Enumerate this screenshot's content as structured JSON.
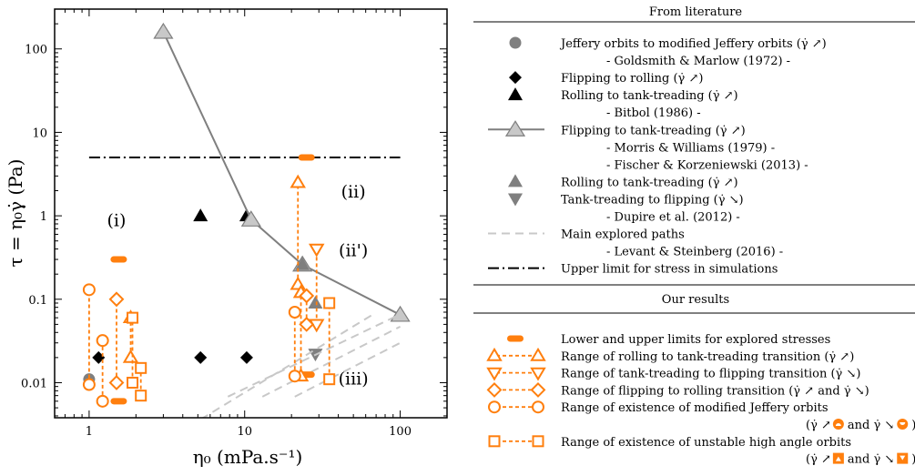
{
  "chart_data": {
    "type": "scatter",
    "xscale": "log",
    "yscale": "log",
    "xlim": [
      0.6,
      200
    ],
    "ylim": [
      0.0038,
      300
    ],
    "xticks": [
      1,
      10,
      100
    ],
    "xtick_labels": [
      "1",
      "10",
      "100"
    ],
    "yticks": [
      0.01,
      0.1,
      1,
      10,
      100
    ],
    "ytick_labels": [
      "0.01",
      "0.1",
      "1",
      "10",
      "100"
    ],
    "xlabel": "η₀ (mPa.s⁻¹)",
    "ylabel": "τ = η₀γ̇ (Pa)",
    "grid": false,
    "regions": [
      {
        "label": "(i)",
        "x": 1.5,
        "y": 0.75
      },
      {
        "label": "(ii)",
        "x": 50,
        "y": 1.65
      },
      {
        "label": "(ii')",
        "x": 50,
        "y": 0.33
      },
      {
        "label": "(iii)",
        "x": 50,
        "y": 0.0095
      }
    ],
    "colors": {
      "orange": "#ff7f0e",
      "gray": "#999999",
      "line_gray": "#7f7f7f",
      "light_gray": "#c8c8c8",
      "black": "#000000"
    },
    "series": [
      {
        "name": "Jeffery orbits to modified Jeffery orbits (γ̇ ↗)",
        "marker": "circle-filled-gray",
        "points": [
          [
            1.0,
            0.011
          ]
        ]
      },
      {
        "name": "Flipping to rolling (γ̇ ↗)",
        "marker": "diamond-black",
        "points": [
          [
            1.15,
            0.02
          ],
          [
            5.2,
            0.02
          ],
          [
            10.3,
            0.02
          ]
        ]
      },
      {
        "name": "Rolling to tank-treading (γ̇ ↗)",
        "marker": "triangle-up-black",
        "points": [
          [
            5.2,
            1.0
          ],
          [
            10.3,
            1.0
          ]
        ]
      },
      {
        "name": "Flipping to tank-treading (γ̇ ↗)",
        "marker": "triangle-up-lightgray-line",
        "points": [
          [
            3.0,
            160
          ],
          [
            11.0,
            0.9
          ],
          [
            23.5,
            0.26
          ],
          [
            100,
            0.065
          ]
        ]
      },
      {
        "name": "Rolling to tank-treading (γ̇ ↗)",
        "marker": "triangle-up-gray",
        "points": [
          [
            23.5,
            0.26
          ],
          [
            28.5,
            0.09
          ]
        ]
      },
      {
        "name": "Tank-treading to flipping (γ̇ ↘)",
        "marker": "triangle-down-gray",
        "points": [
          [
            28.5,
            0.022
          ]
        ]
      },
      {
        "name": "Main explored paths",
        "marker": "dashed-lightgray",
        "lines": [
          [
            [
              4.4,
              0.003
            ],
            [
              67,
              0.066
            ]
          ],
          [
            [
              7.8,
              0.0068
            ],
            [
              100,
              0.066
            ]
          ],
          [
            [
              13,
              0.0068
            ],
            [
              100,
              0.047
            ]
          ],
          [
            [
              21,
              0.0068
            ],
            [
              100,
              0.03
            ]
          ]
        ]
      },
      {
        "name": "Upper limit for stress in simulations",
        "marker": "dashdot-black",
        "lines": [
          [
            [
              1.0,
              5.0
            ],
            [
              100,
              5.0
            ]
          ]
        ],
        "value": 5.0
      },
      {
        "name": "Lower and upper limits for explored stresses",
        "marker": "orange-pill",
        "points": [
          [
            1.55,
            0.3
          ],
          [
            25,
            5.0
          ],
          [
            1.55,
            0.006
          ],
          [
            25,
            0.0125
          ]
        ]
      },
      {
        "name": "Range of rolling to tank-treading transition (γ̇ ↗)",
        "marker": "triangle-up-open-orange",
        "ranges": [
          {
            "x": 22,
            "lo": 0.15,
            "hi": 2.5
          },
          {
            "x": 1.85,
            "lo": 0.02,
            "hi": 0.06
          },
          {
            "x": 23,
            "lo": 0.012,
            "hi": 0.12
          }
        ]
      },
      {
        "name": "Range of tank-treading to flipping transition (γ̇ ↘)",
        "marker": "triangle-down-open-orange",
        "ranges": [
          {
            "x": 29,
            "lo": 0.05,
            "hi": 0.4
          }
        ]
      },
      {
        "name": "Range of flipping to rolling transition (γ̇ ↗ and γ̇ ↘)",
        "marker": "diamond-open-orange",
        "ranges": [
          {
            "x": 1.5,
            "lo": 0.01,
            "hi": 0.1
          },
          {
            "x": 25,
            "lo": 0.05,
            "hi": 0.11
          }
        ]
      },
      {
        "name": "Range of existence of modified Jeffery orbits",
        "marker": "circle-open-orange",
        "ranges": [
          {
            "x": 1.0,
            "lo": 0.0095,
            "hi": 0.13
          },
          {
            "x": 1.22,
            "lo": 0.006,
            "hi": 0.032
          },
          {
            "x": 21,
            "lo": 0.012,
            "hi": 0.07
          }
        ]
      },
      {
        "name": "Range of existence of unstable high angle orbits",
        "marker": "square-open-orange",
        "ranges": [
          {
            "x": 1.9,
            "lo": 0.01,
            "hi": 0.06
          },
          {
            "x": 2.15,
            "lo": 0.007,
            "hi": 0.015
          },
          {
            "x": 35,
            "lo": 0.011,
            "hi": 0.09
          }
        ]
      }
    ]
  },
  "legend": {
    "literature_header": "From literature",
    "results_header": "Our results",
    "literature_rows": [
      {
        "marker": "circle-gray",
        "text": "Jeffery orbits to modified Jeffery orbits (γ̇ ↗)"
      },
      {
        "marker": "none",
        "text": "- Goldsmith & Marlow (1972) -",
        "indent": true
      },
      {
        "marker": "diamond-black",
        "text": "Flipping to rolling (γ̇ ↗)"
      },
      {
        "marker": "triangle-up-black",
        "text": "Rolling to tank-treading (γ̇ ↗)"
      },
      {
        "marker": "none",
        "text": "- Bitbol (1986) -",
        "indent": true
      },
      {
        "marker": "triangle-line",
        "text": "Flipping to tank-treading (γ̇ ↗)"
      },
      {
        "marker": "none",
        "text": "- Morris & Williams (1979) -",
        "indent": true
      },
      {
        "marker": "none",
        "text": "- Fischer & Korzeniewski (2013) -",
        "indent": true
      },
      {
        "marker": "triangle-up-gray",
        "text": "Rolling to tank-treading (γ̇ ↗)"
      },
      {
        "marker": "triangle-down-gray",
        "text": "Tank-treading to flipping (γ̇ ↘)"
      },
      {
        "marker": "none",
        "text": "- Dupire  et al. (2012) -",
        "indent": true
      },
      {
        "marker": "dashed",
        "text": "Main explored paths"
      },
      {
        "marker": "none",
        "text": "- Levant & Steinberg (2016) -",
        "indent": true
      },
      {
        "marker": "dashdot",
        "text": "Upper limit for stress in simulations"
      }
    ],
    "results_rows": [
      {
        "marker": "pill",
        "text": "Lower and upper limits for explored stresses"
      },
      {
        "marker": "tri-up-open",
        "text": "Range of rolling to tank-treading transition (γ̇ ↗)"
      },
      {
        "marker": "tri-down-open",
        "text": "Range of tank-treading to flipping transition (γ̇ ↘)"
      },
      {
        "marker": "diamond-open",
        "text": "Range of flipping to rolling transition (γ̇ ↗ and γ̇ ↘)"
      },
      {
        "marker": "circle-open",
        "text": "Range of existence of modified Jeffery orbits"
      },
      {
        "marker": "none",
        "text": "(γ̇ ↗",
        "mid": "and γ̇ ↘",
        "end": ")",
        "sub": "circle"
      },
      {
        "marker": "square-open",
        "text": "Range of existence of unstable high angle orbits"
      },
      {
        "marker": "none",
        "text": "(γ̇ ↗",
        "mid": "and γ̇ ↘",
        "end": ")",
        "sub": "square"
      }
    ]
  }
}
